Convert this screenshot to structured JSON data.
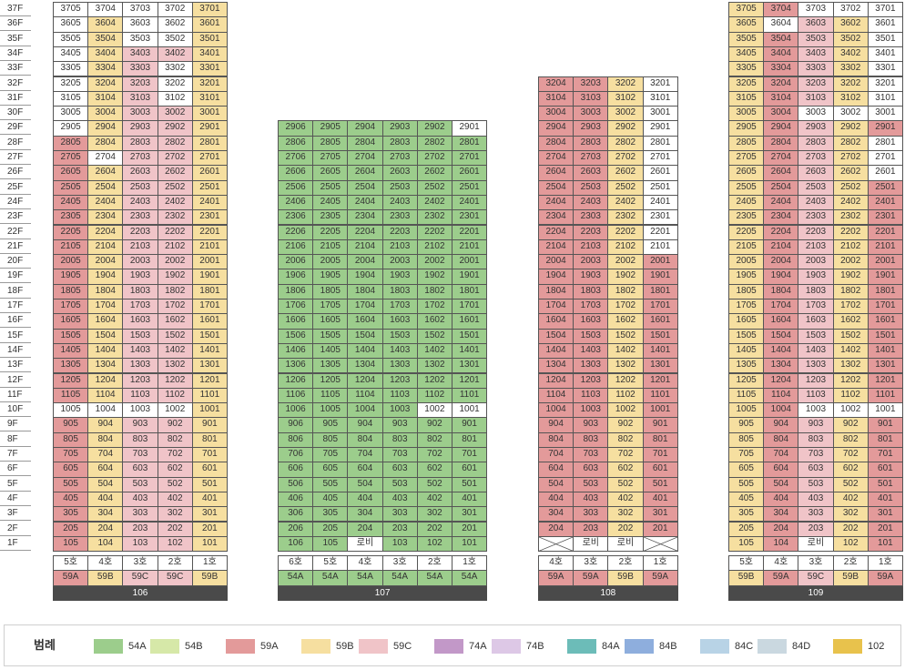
{
  "colors": {
    "54A": "#9ccd8c",
    "54B": "#d6e8a8",
    "59A": "#e39a9a",
    "59B": "#f6dfa0",
    "59C": "#f0c4c8",
    "74A": "#c298c8",
    "74B": "#ddc8e6",
    "84A": "#6cbcb8",
    "84B": "#8eaedd",
    "84C": "#b8d3e6",
    "84D": "#cad8e0",
    "102": "#e8c24c",
    "none": "#ffffff"
  },
  "floors": [
    "37F",
    "36F",
    "35F",
    "34F",
    "33F",
    "32F",
    "31F",
    "30F",
    "29F",
    "28F",
    "27F",
    "26F",
    "25F",
    "24F",
    "23F",
    "22F",
    "21F",
    "20F",
    "19F",
    "18F",
    "17F",
    "16F",
    "15F",
    "14F",
    "13F",
    "12F",
    "11F",
    "10F",
    "9F",
    "8F",
    "7F",
    "6F",
    "5F",
    "4F",
    "3F",
    "2F",
    "1F"
  ],
  "buildings": [
    {
      "name": "106",
      "top_floor": 37,
      "columns": [
        {
          "line": 5,
          "ho": "5호",
          "type": "59A",
          "first_floor": "105"
        },
        {
          "line": 4,
          "ho": "4호",
          "type": "59B",
          "first_floor": "104"
        },
        {
          "line": 3,
          "ho": "3호",
          "type": "59C",
          "first_floor": "103"
        },
        {
          "line": 2,
          "ho": "2호",
          "type": "59C",
          "first_floor": "102"
        },
        {
          "line": 1,
          "ho": "1호",
          "type": "59B",
          "first_floor": "101"
        }
      ],
      "overrides": {
        "3705": "none",
        "3704": "none",
        "3703": "none",
        "3702": "none",
        "3605": "none",
        "3603": "none",
        "3602": "none",
        "3505": "none",
        "3503": "none",
        "3502": "none",
        "3405": "none",
        "3403": "59C",
        "3402": "59C",
        "3305": "none",
        "3303": "59C",
        "3302": "none",
        "3205": "none",
        "3203": "59C",
        "3202": "none",
        "3105": "none",
        "3103": "59C",
        "3102": "none",
        "3005": "none",
        "3003": "59C",
        "3002": "59C",
        "2905": "none",
        "2704": "none",
        "1005": "none",
        "1004": "none",
        "1003": "none",
        "1002": "none"
      }
    },
    {
      "name": "107",
      "top_floor": 29,
      "columns": [
        {
          "line": 6,
          "ho": "6호",
          "type": "54A",
          "first_floor": "106"
        },
        {
          "line": 5,
          "ho": "5호",
          "type": "54A",
          "first_floor": "105"
        },
        {
          "line": 4,
          "ho": "4호",
          "type": "54A",
          "first_floor": "로비"
        },
        {
          "line": 3,
          "ho": "3호",
          "type": "54A",
          "first_floor": "103"
        },
        {
          "line": 2,
          "ho": "2호",
          "type": "54A",
          "first_floor": "102"
        },
        {
          "line": 1,
          "ho": "1호",
          "type": "54A",
          "first_floor": "101"
        }
      ],
      "overrides": {
        "2901": "none",
        "1002": "none",
        "1001": "none",
        "104": "none"
      }
    },
    {
      "name": "108",
      "top_floor": 32,
      "columns": [
        {
          "line": 4,
          "ho": "4호",
          "type": "59A",
          "first_floor": "X"
        },
        {
          "line": 3,
          "ho": "3호",
          "type": "59A",
          "first_floor": "로비"
        },
        {
          "line": 2,
          "ho": "2호",
          "type": "59B",
          "first_floor": "로비"
        },
        {
          "line": 1,
          "ho": "1호",
          "type": "59A",
          "first_floor": "X"
        }
      ],
      "overrides": {
        "3201": "none",
        "3101": "none",
        "3001": "none",
        "2901": "none",
        "2801": "none",
        "2701": "none",
        "2601": "none",
        "2501": "none",
        "2401": "none",
        "2301": "none",
        "2201": "none",
        "2101": "none",
        "104": "none",
        "103": "none",
        "102": "none",
        "101": "none"
      }
    },
    {
      "name": "109",
      "top_floor": 37,
      "columns": [
        {
          "line": 5,
          "ho": "5호",
          "type": "59B",
          "first_floor": "105"
        },
        {
          "line": 4,
          "ho": "4호",
          "type": "59A",
          "first_floor": "104"
        },
        {
          "line": 3,
          "ho": "3호",
          "type": "59C",
          "first_floor": "로비"
        },
        {
          "line": 2,
          "ho": "2호",
          "type": "59B",
          "first_floor": "102"
        },
        {
          "line": 1,
          "ho": "1호",
          "type": "59A",
          "first_floor": "101"
        }
      ],
      "overrides": {
        "3703": "none",
        "3702": "none",
        "3701": "none",
        "3604": "none",
        "3601": "none",
        "3503": "59C",
        "3501": "none",
        "3401": "none",
        "3301": "none",
        "3201": "none",
        "3101": "none",
        "3003": "none",
        "3002": "none",
        "3001": "none",
        "2903": "59C",
        "2801": "none",
        "2701": "none",
        "2601": "none",
        "1003": "none",
        "1002": "none",
        "1001": "none",
        "103": "none"
      }
    }
  ],
  "legend": {
    "title": "범례",
    "items": [
      {
        "key": "54A",
        "label": "54A"
      },
      {
        "key": "54B",
        "label": "54B"
      },
      {
        "key": "59A",
        "label": "59A"
      },
      {
        "key": "59B",
        "label": "59B"
      },
      {
        "key": "59C",
        "label": "59C"
      },
      {
        "key": "74A",
        "label": "74A"
      },
      {
        "key": "74B",
        "label": "74B"
      },
      {
        "key": "84A",
        "label": "84A"
      },
      {
        "key": "84B",
        "label": "84B"
      },
      {
        "key": "84C",
        "label": "84C"
      },
      {
        "key": "84D",
        "label": "84D"
      },
      {
        "key": "102",
        "label": "102"
      }
    ]
  }
}
